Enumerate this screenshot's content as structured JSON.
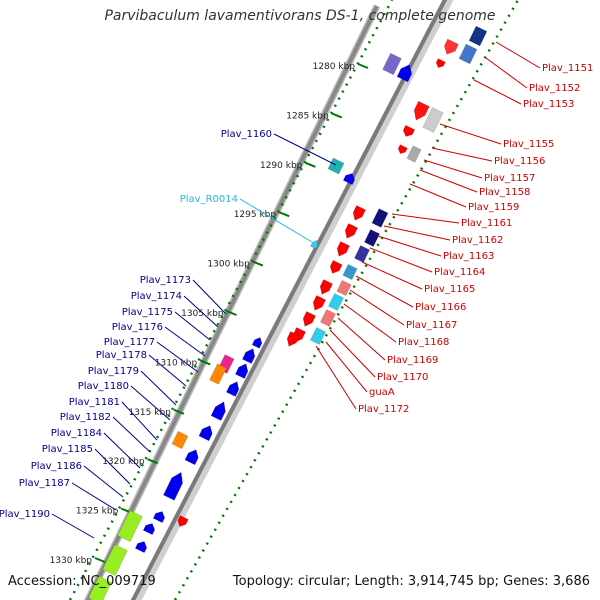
{
  "title": "Parvibaculum lavamentivorans DS-1, complete genome",
  "footer": {
    "accession": "Accession: NC_009719",
    "topology": "Topology: circular; Length: 3,914,745 bp; Genes: 3,686"
  },
  "colors": {
    "forward_gene": "#0000ee",
    "reverse_gene": "#ff0000",
    "forward_label": "#00008b",
    "reverse_label": "#cc0000",
    "rna_label": "#22bbdd",
    "tick": "#007700",
    "backbone": "#888888"
  },
  "ticks": [
    "1280 kbp",
    "1285 kbp",
    "1290 kbp",
    "1295 kbp",
    "1300 kbp",
    "1305 kbp",
    "1310 kbp",
    "1315 kbp",
    "1320 kbp",
    "1325 kbp",
    "1330 kbp"
  ],
  "forward_labels": [
    "Plav_1160",
    "Plav_1173",
    "Plav_1174",
    "Plav_1175",
    "Plav_1176",
    "Plav_1177",
    "Plav_1178",
    "Plav_1179",
    "Plav_1180",
    "Plav_1181",
    "Plav_1182",
    "Plav_1184",
    "Plav_1185",
    "Plav_1186",
    "Plav_1187",
    "Plav_1190"
  ],
  "rna_labels": [
    "Plav_R0014"
  ],
  "reverse_labels": [
    "Plav_1151",
    "Plav_1152",
    "Plav_1153",
    "Plav_1155",
    "Plav_1156",
    "Plav_1157",
    "Plav_1158",
    "Plav_1159",
    "Plav_1161",
    "Plav_1162",
    "Plav_1163",
    "Plav_1164",
    "Plav_1165",
    "Plav_1166",
    "Plav_1167",
    "Plav_1168",
    "Plav_1169",
    "Plav_1170",
    "guaA",
    "Plav_1172"
  ]
}
